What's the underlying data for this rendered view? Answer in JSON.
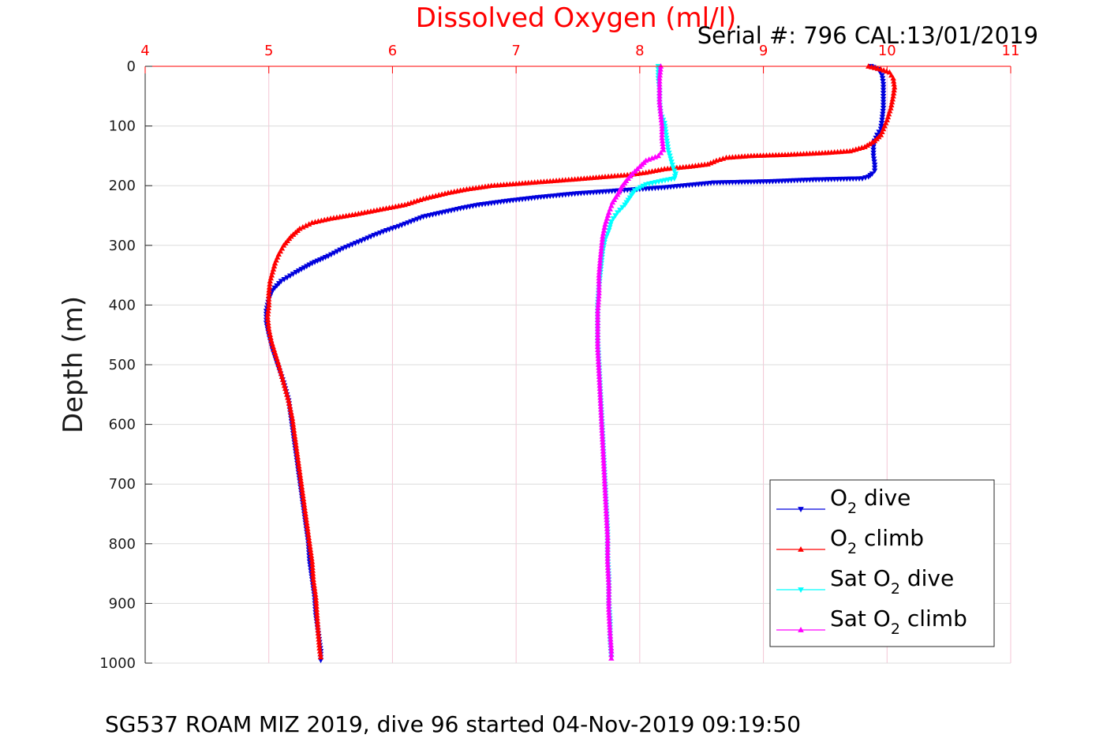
{
  "chart_data": {
    "type": "scatter",
    "title": "Dissolved Oxygen (ml/l)",
    "serial": "Serial #: 796  CAL:13/01/2019",
    "caption": "SG537 ROAM MIZ 2019, dive 96 started 04-Nov-2019 09:19:50",
    "xlabel": "Dissolved Oxygen (ml/l)",
    "ylabel": "Depth (m)",
    "xlim": [
      4,
      11
    ],
    "ylim": [
      0,
      1000
    ],
    "y_reversed": true,
    "x_axis_position": "top",
    "grid": true,
    "xticks": [
      4,
      5,
      6,
      7,
      8,
      9,
      10,
      11
    ],
    "yticks": [
      0,
      100,
      200,
      300,
      400,
      500,
      600,
      700,
      800,
      900,
      1000
    ],
    "xtick_labels": [
      "4",
      "5",
      "6",
      "7",
      "8",
      "9",
      "10",
      "11"
    ],
    "ytick_labels": [
      "0",
      "100",
      "200",
      "300",
      "400",
      "500",
      "600",
      "700",
      "800",
      "900",
      "1000"
    ],
    "legend_position": "bottom-right",
    "legend": [
      {
        "prefix": "O",
        "sub": "2",
        "suffix": " dive",
        "color": "#0000dd",
        "marker": "triangle-down"
      },
      {
        "prefix": "O",
        "sub": "2",
        "suffix": " climb",
        "color": "#ff0000",
        "marker": "triangle-up"
      },
      {
        "prefix": "Sat O",
        "sub": "2",
        "suffix": " dive",
        "color": "#00ffff",
        "marker": "triangle-down"
      },
      {
        "prefix": "Sat O",
        "sub": "2",
        "suffix": " climb",
        "color": "#ff00ff",
        "marker": "triangle-up"
      }
    ],
    "series": [
      {
        "color": "#0000dd",
        "marker": "triangle-down",
        "points": [
          [
            9.87,
            0
          ],
          [
            9.93,
            5
          ],
          [
            9.96,
            15
          ],
          [
            9.97,
            30
          ],
          [
            9.97,
            50
          ],
          [
            9.97,
            70
          ],
          [
            9.96,
            90
          ],
          [
            9.95,
            105
          ],
          [
            9.92,
            115
          ],
          [
            9.9,
            125
          ],
          [
            9.89,
            135
          ],
          [
            9.89,
            150
          ],
          [
            9.9,
            165
          ],
          [
            9.9,
            175
          ],
          [
            9.88,
            180
          ],
          [
            9.85,
            185
          ],
          [
            9.8,
            188
          ],
          [
            9.4,
            190
          ],
          [
            9.05,
            193
          ],
          [
            8.6,
            195
          ],
          [
            8.2,
            203
          ],
          [
            7.85,
            208
          ],
          [
            7.5,
            213
          ],
          [
            7.2,
            219
          ],
          [
            6.95,
            225
          ],
          [
            6.7,
            232
          ],
          [
            6.55,
            238
          ],
          [
            6.4,
            245
          ],
          [
            6.25,
            252
          ],
          [
            6.15,
            260
          ],
          [
            6.05,
            268
          ],
          [
            5.95,
            275
          ],
          [
            5.85,
            283
          ],
          [
            5.75,
            292
          ],
          [
            5.6,
            305
          ],
          [
            5.48,
            318
          ],
          [
            5.35,
            330
          ],
          [
            5.22,
            345
          ],
          [
            5.1,
            360
          ],
          [
            5.03,
            375
          ],
          [
            5.0,
            390
          ],
          [
            4.98,
            410
          ],
          [
            4.98,
            430
          ],
          [
            5.0,
            450
          ],
          [
            5.03,
            475
          ],
          [
            5.07,
            500
          ],
          [
            5.12,
            530
          ],
          [
            5.16,
            560
          ],
          [
            5.18,
            590
          ],
          [
            5.2,
            620
          ],
          [
            5.22,
            650
          ],
          [
            5.24,
            680
          ],
          [
            5.26,
            710
          ],
          [
            5.28,
            740
          ],
          [
            5.3,
            770
          ],
          [
            5.32,
            800
          ],
          [
            5.33,
            830
          ],
          [
            5.35,
            860
          ],
          [
            5.37,
            890
          ],
          [
            5.38,
            920
          ],
          [
            5.4,
            950
          ],
          [
            5.42,
            980
          ],
          [
            5.42,
            995
          ]
        ]
      },
      {
        "color": "#ff0000",
        "marker": "triangle-up",
        "points": [
          [
            9.85,
            0
          ],
          [
            9.95,
            5
          ],
          [
            10.02,
            10
          ],
          [
            10.05,
            20
          ],
          [
            10.06,
            35
          ],
          [
            10.05,
            50
          ],
          [
            10.03,
            70
          ],
          [
            10.0,
            90
          ],
          [
            9.97,
            105
          ],
          [
            9.95,
            115
          ],
          [
            9.9,
            125
          ],
          [
            9.82,
            135
          ],
          [
            9.7,
            142
          ],
          [
            9.5,
            145
          ],
          [
            9.2,
            148
          ],
          [
            8.9,
            150
          ],
          [
            8.7,
            153
          ],
          [
            8.62,
            158
          ],
          [
            8.55,
            164
          ],
          [
            8.4,
            168
          ],
          [
            8.2,
            172
          ],
          [
            8.05,
            178
          ],
          [
            7.9,
            182
          ],
          [
            7.72,
            185
          ],
          [
            7.55,
            188
          ],
          [
            7.3,
            192
          ],
          [
            7.05,
            196
          ],
          [
            6.8,
            200
          ],
          [
            6.6,
            206
          ],
          [
            6.45,
            212
          ],
          [
            6.25,
            222
          ],
          [
            6.1,
            232
          ],
          [
            5.9,
            240
          ],
          [
            5.7,
            248
          ],
          [
            5.5,
            255
          ],
          [
            5.35,
            262
          ],
          [
            5.25,
            272
          ],
          [
            5.18,
            285
          ],
          [
            5.12,
            300
          ],
          [
            5.08,
            315
          ],
          [
            5.05,
            330
          ],
          [
            5.03,
            345
          ],
          [
            5.01,
            360
          ],
          [
            5.0,
            380
          ],
          [
            5.0,
            400
          ],
          [
            4.99,
            420
          ],
          [
            5.0,
            440
          ],
          [
            5.02,
            460
          ],
          [
            5.05,
            480
          ],
          [
            5.08,
            500
          ],
          [
            5.12,
            530
          ],
          [
            5.16,
            560
          ],
          [
            5.19,
            590
          ],
          [
            5.21,
            620
          ],
          [
            5.23,
            650
          ],
          [
            5.25,
            680
          ],
          [
            5.27,
            710
          ],
          [
            5.29,
            740
          ],
          [
            5.31,
            770
          ],
          [
            5.33,
            800
          ],
          [
            5.35,
            830
          ],
          [
            5.36,
            860
          ],
          [
            5.38,
            890
          ],
          [
            5.39,
            920
          ],
          [
            5.4,
            950
          ],
          [
            5.41,
            975
          ],
          [
            5.42,
            990
          ]
        ]
      },
      {
        "color": "#00ffff",
        "marker": "triangle-down",
        "points": [
          [
            8.15,
            0
          ],
          [
            8.15,
            20
          ],
          [
            8.16,
            40
          ],
          [
            8.16,
            60
          ],
          [
            8.17,
            80
          ],
          [
            8.2,
            95
          ],
          [
            8.21,
            110
          ],
          [
            8.22,
            125
          ],
          [
            8.23,
            140
          ],
          [
            8.25,
            155
          ],
          [
            8.27,
            170
          ],
          [
            8.29,
            180
          ],
          [
            8.28,
            188
          ],
          [
            8.18,
            192
          ],
          [
            8.05,
            198
          ],
          [
            7.96,
            208
          ],
          [
            7.92,
            220
          ],
          [
            7.88,
            232
          ],
          [
            7.82,
            245
          ],
          [
            7.77,
            260
          ],
          [
            7.75,
            275
          ],
          [
            7.72,
            290
          ],
          [
            7.7,
            310
          ],
          [
            7.69,
            330
          ],
          [
            7.68,
            350
          ],
          [
            7.67,
            370
          ],
          [
            7.66,
            400
          ],
          [
            7.66,
            430
          ],
          [
            7.66,
            460
          ],
          [
            7.67,
            500
          ],
          [
            7.68,
            540
          ],
          [
            7.69,
            580
          ],
          [
            7.7,
            620
          ],
          [
            7.71,
            660
          ],
          [
            7.72,
            700
          ],
          [
            7.73,
            740
          ],
          [
            7.74,
            780
          ],
          [
            7.74,
            820
          ],
          [
            7.75,
            860
          ],
          [
            7.75,
            900
          ],
          [
            7.76,
            930
          ],
          [
            7.76,
            960
          ],
          [
            7.77,
            990
          ]
        ]
      },
      {
        "color": "#ff00ff",
        "marker": "triangle-up",
        "points": [
          [
            8.17,
            0
          ],
          [
            8.16,
            20
          ],
          [
            8.16,
            40
          ],
          [
            8.16,
            60
          ],
          [
            8.17,
            80
          ],
          [
            8.18,
            100
          ],
          [
            8.18,
            120
          ],
          [
            8.19,
            140
          ],
          [
            8.15,
            150
          ],
          [
            8.05,
            158
          ],
          [
            8.0,
            168
          ],
          [
            7.94,
            180
          ],
          [
            7.89,
            192
          ],
          [
            7.85,
            203
          ],
          [
            7.82,
            215
          ],
          [
            7.78,
            228
          ],
          [
            7.75,
            245
          ],
          [
            7.72,
            265
          ],
          [
            7.7,
            285
          ],
          [
            7.69,
            305
          ],
          [
            7.68,
            325
          ],
          [
            7.67,
            350
          ],
          [
            7.67,
            380
          ],
          [
            7.66,
            410
          ],
          [
            7.66,
            440
          ],
          [
            7.66,
            470
          ],
          [
            7.67,
            510
          ],
          [
            7.68,
            550
          ],
          [
            7.69,
            590
          ],
          [
            7.7,
            630
          ],
          [
            7.71,
            670
          ],
          [
            7.72,
            710
          ],
          [
            7.73,
            750
          ],
          [
            7.74,
            790
          ],
          [
            7.74,
            830
          ],
          [
            7.75,
            870
          ],
          [
            7.75,
            910
          ],
          [
            7.76,
            950
          ],
          [
            7.77,
            980
          ],
          [
            7.77,
            992
          ]
        ]
      }
    ]
  }
}
